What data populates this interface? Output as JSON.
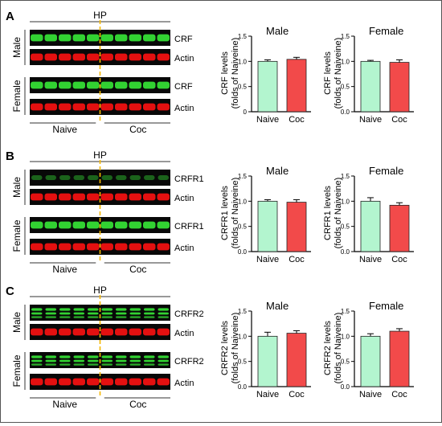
{
  "colors": {
    "naive_fill": "#b3f5cf",
    "coc_fill": "#f24a4a",
    "blot_green": "#32d232",
    "blot_red": "#e41010",
    "divider": "#f5b700"
  },
  "panels": [
    {
      "letter": "A",
      "region": "HP",
      "blot_rows": [
        {
          "group": "Male",
          "target": "CRF",
          "actin": "Actin"
        },
        {
          "group": "Female",
          "target": "CRF",
          "actin": "Actin"
        }
      ],
      "conditions": [
        "Naive",
        "Coc"
      ],
      "ylabel": "CRF levels\n(folds of Naiveine)"
    },
    {
      "letter": "B",
      "region": "HP",
      "blot_rows": [
        {
          "group": "Male",
          "target": "CRFR1",
          "actin": "Actin"
        },
        {
          "group": "Female",
          "target": "CRFR1",
          "actin": "Actin"
        }
      ],
      "conditions": [
        "Naive",
        "Coc"
      ],
      "ylabel": "CRFR1 levels\n(folds of Naiveine)"
    },
    {
      "letter": "C",
      "region": "HP",
      "blot_rows": [
        {
          "group": "Male",
          "target": "CRFR2",
          "actin": "Actin"
        },
        {
          "group": "Female",
          "target": "CRFR2",
          "actin": "Actin"
        }
      ],
      "conditions": [
        "Naive",
        "Coc"
      ],
      "ylabel": "CRFR2 levels\n(folds of Naiveine)"
    }
  ],
  "chart_data": [
    {
      "type": "bar",
      "panel": "A",
      "title": "Male",
      "categories": [
        "Naive",
        "Coc"
      ],
      "values": [
        1.0,
        1.04
      ],
      "errors": [
        0.03,
        0.04
      ],
      "ylabel": "CRF levels\n(folds of Naiveine)",
      "ylim": [
        0,
        1.5
      ],
      "yticks": [
        "0",
        "0.5",
        "1.0",
        "1.5"
      ]
    },
    {
      "type": "bar",
      "panel": "A",
      "title": "Female",
      "categories": [
        "Naive",
        "Coc"
      ],
      "values": [
        1.0,
        0.98
      ],
      "errors": [
        0.02,
        0.05
      ],
      "ylabel": "CRF levels\n(folds of Naiveine)",
      "ylim": [
        0,
        1.5
      ],
      "yticks": [
        "0.0",
        "0.5",
        "1.0",
        "1.5"
      ]
    },
    {
      "type": "bar",
      "panel": "B",
      "title": "Male",
      "categories": [
        "Naive",
        "Coc"
      ],
      "values": [
        1.0,
        0.98
      ],
      "errors": [
        0.03,
        0.05
      ],
      "ylabel": "CRFR1 levels\n(folds of Naiveine)",
      "ylim": [
        0,
        1.5
      ],
      "yticks": [
        "0.0",
        "0.5",
        "1.0",
        "1.5"
      ]
    },
    {
      "type": "bar",
      "panel": "B",
      "title": "Female",
      "categories": [
        "Naive",
        "Coc"
      ],
      "values": [
        1.0,
        0.92
      ],
      "errors": [
        0.07,
        0.05
      ],
      "ylabel": "CRFR1 levels\n(folds of Naiveine)",
      "ylim": [
        0,
        1.5
      ],
      "yticks": [
        "0.0",
        "0.5",
        "1.0",
        "1.5"
      ]
    },
    {
      "type": "bar",
      "panel": "C",
      "title": "Male",
      "categories": [
        "Naive",
        "Coc"
      ],
      "values": [
        1.0,
        1.06
      ],
      "errors": [
        0.08,
        0.05
      ],
      "ylabel": "CRFR2 levels\n(folds of Naiveine)",
      "ylim": [
        0,
        1.5
      ],
      "yticks": [
        "0.0",
        "0.5",
        "1.0",
        "1.5"
      ]
    },
    {
      "type": "bar",
      "panel": "C",
      "title": "Female",
      "categories": [
        "Naive",
        "Coc"
      ],
      "values": [
        1.0,
        1.1
      ],
      "errors": [
        0.05,
        0.05
      ],
      "ylabel": "CRFR2 levels\n(folds of Naiveine)",
      "ylim": [
        0,
        1.5
      ],
      "yticks": [
        "0.0",
        "0.5",
        "1.0",
        "1.5"
      ]
    }
  ]
}
